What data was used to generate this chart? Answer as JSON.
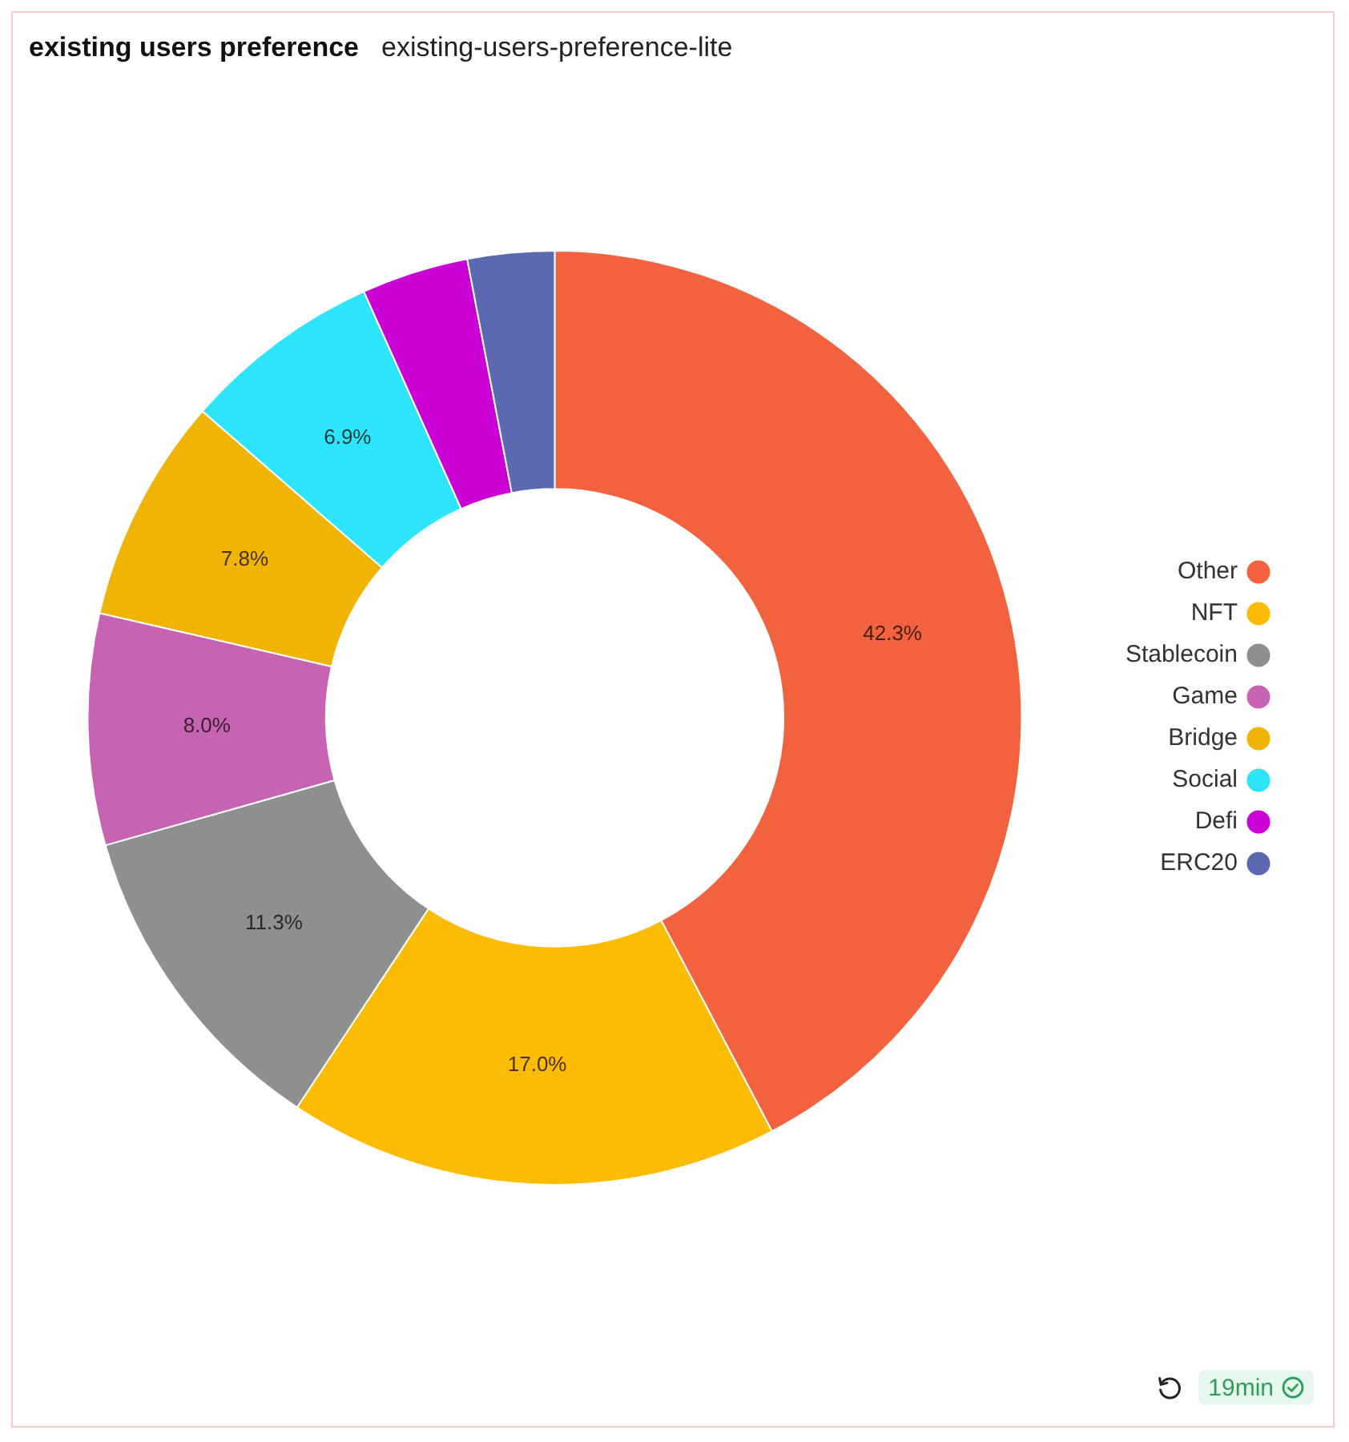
{
  "chart_data": {
    "type": "donut",
    "title": "existing users preference",
    "subtitle": "existing-users-preference-lite",
    "categories": [
      "Other",
      "NFT",
      "Stablecoin",
      "Game",
      "Bridge",
      "Social",
      "Defi",
      "ERC20"
    ],
    "values": [
      42.3,
      17.0,
      11.3,
      8.0,
      7.8,
      6.9,
      3.7,
      3.0
    ],
    "colors": [
      "#f3623f",
      "#fcbb05",
      "#8f8f8f",
      "#c763b3",
      "#f0b404",
      "#2ce5fb",
      "#cb02d6",
      "#5c69b2"
    ],
    "value_labels": [
      "42.3%",
      "17.0%",
      "11.3%",
      "8.0%",
      "7.8%",
      "6.9%",
      null,
      null
    ],
    "legend": "right",
    "annotations": [
      "19min"
    ]
  }
}
